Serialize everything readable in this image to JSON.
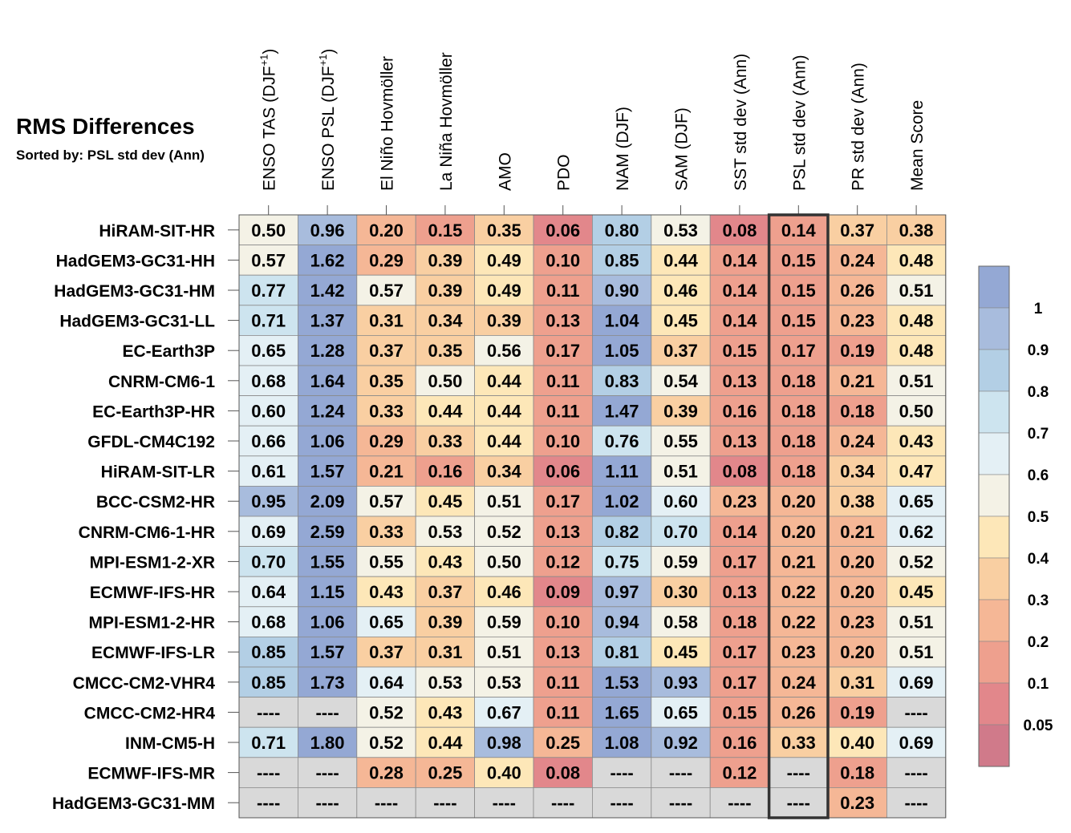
{
  "chart_data": {
    "type": "heatmap",
    "title": "RMS Differences",
    "subtitle": "Sorted by: PSL std dev (Ann)",
    "missing_label": "----",
    "highlighted_column": "PSL std dev (Ann)",
    "columns": [
      "ENSO TAS (DJF+1)",
      "ENSO PSL (DJF+1)",
      "El Niño Hovmöller",
      "La Niña Hovmöller",
      "AMO",
      "PDO",
      "NAM (DJF)",
      "SAM (DJF)",
      "SST std dev (Ann)",
      "PSL std dev (Ann)",
      "PR std dev (Ann)",
      "Mean Score"
    ],
    "rows": [
      {
        "model": "HiRAM-SIT-HR",
        "values": [
          0.5,
          0.96,
          0.2,
          0.15,
          0.35,
          0.06,
          0.8,
          0.53,
          0.08,
          0.14,
          0.37,
          0.38
        ]
      },
      {
        "model": "HadGEM3-GC31-HH",
        "values": [
          0.57,
          1.62,
          0.29,
          0.39,
          0.49,
          0.1,
          0.85,
          0.44,
          0.14,
          0.15,
          0.24,
          0.48
        ]
      },
      {
        "model": "HadGEM3-GC31-HM",
        "values": [
          0.77,
          1.42,
          0.57,
          0.39,
          0.49,
          0.11,
          0.9,
          0.46,
          0.14,
          0.15,
          0.26,
          0.51
        ]
      },
      {
        "model": "HadGEM3-GC31-LL",
        "values": [
          0.71,
          1.37,
          0.31,
          0.34,
          0.39,
          0.13,
          1.04,
          0.45,
          0.14,
          0.15,
          0.23,
          0.48
        ]
      },
      {
        "model": "EC-Earth3P",
        "values": [
          0.65,
          1.28,
          0.37,
          0.35,
          0.56,
          0.17,
          1.05,
          0.37,
          0.15,
          0.17,
          0.19,
          0.48
        ]
      },
      {
        "model": "CNRM-CM6-1",
        "values": [
          0.68,
          1.64,
          0.35,
          0.5,
          0.44,
          0.11,
          0.83,
          0.54,
          0.13,
          0.18,
          0.21,
          0.51
        ]
      },
      {
        "model": "EC-Earth3P-HR",
        "values": [
          0.6,
          1.24,
          0.33,
          0.44,
          0.44,
          0.11,
          1.47,
          0.39,
          0.16,
          0.18,
          0.18,
          0.5
        ]
      },
      {
        "model": "GFDL-CM4C192",
        "values": [
          0.66,
          1.06,
          0.29,
          0.33,
          0.44,
          0.1,
          0.76,
          0.55,
          0.13,
          0.18,
          0.24,
          0.43
        ]
      },
      {
        "model": "HiRAM-SIT-LR",
        "values": [
          0.61,
          1.57,
          0.21,
          0.16,
          0.34,
          0.06,
          1.11,
          0.51,
          0.08,
          0.18,
          0.34,
          0.47
        ]
      },
      {
        "model": "BCC-CSM2-HR",
        "values": [
          0.95,
          2.09,
          0.57,
          0.45,
          0.51,
          0.17,
          1.02,
          0.6,
          0.23,
          0.2,
          0.38,
          0.65
        ]
      },
      {
        "model": "CNRM-CM6-1-HR",
        "values": [
          0.69,
          2.59,
          0.33,
          0.53,
          0.52,
          0.13,
          0.82,
          0.7,
          0.14,
          0.2,
          0.21,
          0.62
        ]
      },
      {
        "model": "MPI-ESM1-2-XR",
        "values": [
          0.7,
          1.55,
          0.55,
          0.43,
          0.5,
          0.12,
          0.75,
          0.59,
          0.17,
          0.21,
          0.2,
          0.52
        ]
      },
      {
        "model": "ECMWF-IFS-HR",
        "values": [
          0.64,
          1.15,
          0.43,
          0.37,
          0.46,
          0.09,
          0.97,
          0.3,
          0.13,
          0.22,
          0.2,
          0.45
        ]
      },
      {
        "model": "MPI-ESM1-2-HR",
        "values": [
          0.68,
          1.06,
          0.65,
          0.39,
          0.59,
          0.1,
          0.94,
          0.58,
          0.18,
          0.22,
          0.23,
          0.51
        ]
      },
      {
        "model": "ECMWF-IFS-LR",
        "values": [
          0.85,
          1.57,
          0.37,
          0.31,
          0.51,
          0.13,
          0.81,
          0.45,
          0.17,
          0.23,
          0.2,
          0.51
        ]
      },
      {
        "model": "CMCC-CM2-VHR4",
        "values": [
          0.85,
          1.73,
          0.64,
          0.53,
          0.53,
          0.11,
          1.53,
          0.93,
          0.17,
          0.24,
          0.31,
          0.69
        ]
      },
      {
        "model": "CMCC-CM2-HR4",
        "values": [
          null,
          null,
          0.52,
          0.43,
          0.67,
          0.11,
          1.65,
          0.65,
          0.15,
          0.26,
          0.19,
          null
        ]
      },
      {
        "model": "INM-CM5-H",
        "values": [
          0.71,
          1.8,
          0.52,
          0.44,
          0.98,
          0.25,
          1.08,
          0.92,
          0.16,
          0.33,
          0.4,
          0.69
        ]
      },
      {
        "model": "ECMWF-IFS-MR",
        "values": [
          null,
          null,
          0.28,
          0.25,
          0.4,
          0.08,
          null,
          null,
          0.12,
          null,
          0.18,
          null
        ]
      },
      {
        "model": "HadGEM3-GC31-MM",
        "values": [
          null,
          null,
          null,
          null,
          null,
          null,
          null,
          null,
          null,
          null,
          0.23,
          null
        ]
      }
    ],
    "colorbar": {
      "tick_labels": [
        "1",
        "0.9",
        "0.8",
        "0.7",
        "0.6",
        "0.5",
        "0.4",
        "0.3",
        "0.2",
        "0.1",
        "0.05"
      ],
      "thresholds": [
        0.05,
        0.1,
        0.2,
        0.3,
        0.4,
        0.5,
        0.6,
        0.7,
        0.8,
        0.9,
        1
      ],
      "colors_low_to_high": [
        "#d07a8a",
        "#e2878b",
        "#eea08e",
        "#f5b796",
        "#f9cfa2",
        "#fde7b8",
        "#f4f2e6",
        "#e4f0f5",
        "#cde4ef",
        "#b3cfe5",
        "#a8bcdd",
        "#94a8d4"
      ],
      "missing_color": "#d9d9d9",
      "highlight_border_color": "#333333"
    }
  }
}
